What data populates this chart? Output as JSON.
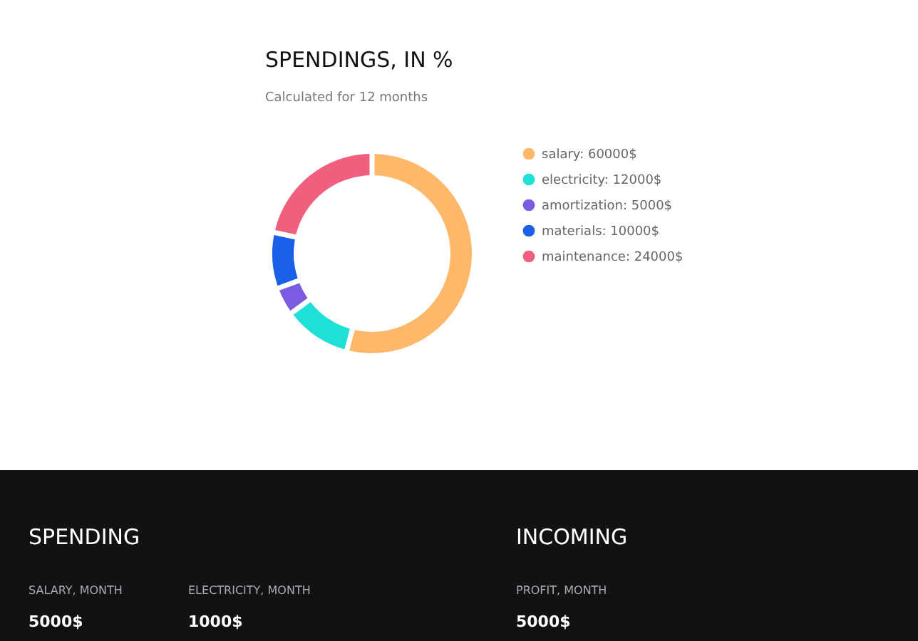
{
  "chart_data": [
    {
      "type": "donut",
      "title": "SPENDINGS, IN %",
      "subtitle": "Calculated for 12 months",
      "categories": [
        "salary: 60000$",
        "electricity: 12000$",
        "amortization: 5000$",
        "materials: 10000$",
        "maintenance: 24000$"
      ],
      "values": [
        60000,
        12000,
        5000,
        10000,
        24000
      ],
      "colors": [
        "#fdb86a",
        "#1fe0d6",
        "#7b5ce0",
        "#1a5fe8",
        "#f0607e"
      ],
      "legend": "right"
    },
    {
      "type": "other",
      "annotations": [
        "SPENDING",
        "SALARY, MONTH",
        "5000$",
        "ELECTRICITY, MONTH",
        "1000$",
        "INCOMING",
        "PROFIT, MONTH",
        "5000$"
      ]
    }
  ]
}
